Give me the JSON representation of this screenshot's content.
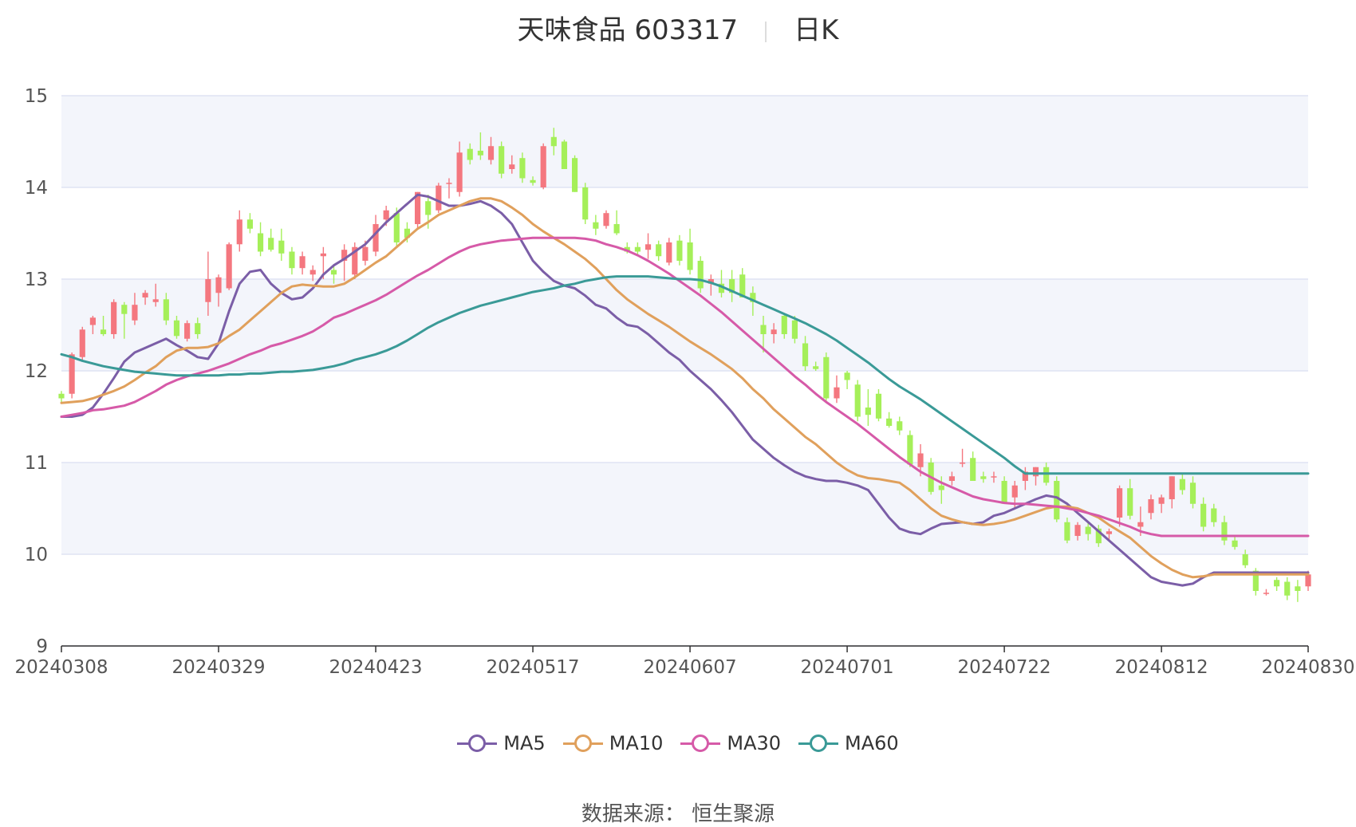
{
  "header": {
    "name": "天味食品 603317",
    "period": "日K"
  },
  "footer": {
    "source": "数据来源： 恒生聚源"
  },
  "colors": {
    "up": "#f4777f",
    "down": "#a5ef59",
    "grid": "#dfe3f3",
    "band": "#f3f5fb",
    "axis": "#333333"
  },
  "chart_data": {
    "type": "candlestick",
    "ylim": [
      9,
      15
    ],
    "yticks": [
      9,
      10,
      11,
      12,
      13,
      14,
      15
    ],
    "xticks": [
      "20240308",
      "20240329",
      "20240423",
      "20240517",
      "20240607",
      "20240701",
      "20240722",
      "20240812",
      "20240830"
    ],
    "xtick_index": [
      0,
      15,
      30,
      45,
      60,
      75,
      90,
      105,
      119
    ],
    "candles_ohlc": [
      [
        11.75,
        11.78,
        11.65,
        11.7
      ],
      [
        11.75,
        12.2,
        11.7,
        12.18
      ],
      [
        12.15,
        12.48,
        12.1,
        12.45
      ],
      [
        12.5,
        12.6,
        12.4,
        12.58
      ],
      [
        12.45,
        12.6,
        12.38,
        12.4
      ],
      [
        12.4,
        12.78,
        12.35,
        12.75
      ],
      [
        12.72,
        12.75,
        12.35,
        12.62
      ],
      [
        12.55,
        12.85,
        12.5,
        12.72
      ],
      [
        12.8,
        12.88,
        12.72,
        12.85
      ],
      [
        12.75,
        12.95,
        12.7,
        12.78
      ],
      [
        12.78,
        12.85,
        12.5,
        12.55
      ],
      [
        12.55,
        12.6,
        12.35,
        12.38
      ],
      [
        12.35,
        12.55,
        12.32,
        12.52
      ],
      [
        12.52,
        12.58,
        12.35,
        12.4
      ],
      [
        12.75,
        13.3,
        12.6,
        13.0
      ],
      [
        12.85,
        13.05,
        12.7,
        13.02
      ],
      [
        12.9,
        13.4,
        12.88,
        13.38
      ],
      [
        13.38,
        13.75,
        13.3,
        13.65
      ],
      [
        13.65,
        13.72,
        13.5,
        13.55
      ],
      [
        13.5,
        13.62,
        13.25,
        13.3
      ],
      [
        13.45,
        13.55,
        13.3,
        13.32
      ],
      [
        13.42,
        13.55,
        13.2,
        13.28
      ],
      [
        13.3,
        13.35,
        13.05,
        13.12
      ],
      [
        13.12,
        13.3,
        13.05,
        13.25
      ],
      [
        13.05,
        13.15,
        12.98,
        13.1
      ],
      [
        13.25,
        13.35,
        13.0,
        13.28
      ],
      [
        13.1,
        13.15,
        12.95,
        13.05
      ],
      [
        13.2,
        13.38,
        12.98,
        13.32
      ],
      [
        13.05,
        13.4,
        13.0,
        13.35
      ],
      [
        13.2,
        13.42,
        13.15,
        13.35
      ],
      [
        13.3,
        13.7,
        13.25,
        13.6
      ],
      [
        13.65,
        13.8,
        13.58,
        13.75
      ],
      [
        13.72,
        13.78,
        13.35,
        13.4
      ],
      [
        13.55,
        13.62,
        13.4,
        13.45
      ],
      [
        13.6,
        13.95,
        13.55,
        13.95
      ],
      [
        13.85,
        13.92,
        13.55,
        13.7
      ],
      [
        13.75,
        14.05,
        13.72,
        14.02
      ],
      [
        14.05,
        14.1,
        13.88,
        14.05
      ],
      [
        13.95,
        14.5,
        13.9,
        14.38
      ],
      [
        14.42,
        14.48,
        14.25,
        14.3
      ],
      [
        14.4,
        14.6,
        14.3,
        14.35
      ],
      [
        14.3,
        14.55,
        14.25,
        14.45
      ],
      [
        14.45,
        14.5,
        14.1,
        14.15
      ],
      [
        14.2,
        14.35,
        14.15,
        14.25
      ],
      [
        14.32,
        14.38,
        14.05,
        14.1
      ],
      [
        14.08,
        14.12,
        14.02,
        14.05
      ],
      [
        14.0,
        14.48,
        13.98,
        14.45
      ],
      [
        14.55,
        14.65,
        14.35,
        14.45
      ],
      [
        14.5,
        14.52,
        14.2,
        14.2
      ],
      [
        14.32,
        14.35,
        13.95,
        13.95
      ],
      [
        14.0,
        14.05,
        13.6,
        13.65
      ],
      [
        13.62,
        13.7,
        13.48,
        13.55
      ],
      [
        13.58,
        13.75,
        13.55,
        13.72
      ],
      [
        13.6,
        13.75,
        13.48,
        13.5
      ],
      [
        13.35,
        13.4,
        13.28,
        13.3
      ],
      [
        13.35,
        13.4,
        13.25,
        13.3
      ],
      [
        13.32,
        13.5,
        13.22,
        13.38
      ],
      [
        13.38,
        13.42,
        13.2,
        13.25
      ],
      [
        13.18,
        13.45,
        13.15,
        13.4
      ],
      [
        13.42,
        13.48,
        13.15,
        13.2
      ],
      [
        13.4,
        13.55,
        13.05,
        13.1
      ],
      [
        13.2,
        13.25,
        12.85,
        12.9
      ],
      [
        12.95,
        13.05,
        12.82,
        13.0
      ],
      [
        12.95,
        13.1,
        12.8,
        12.85
      ],
      [
        13.0,
        13.1,
        12.75,
        12.85
      ],
      [
        13.05,
        13.12,
        12.8,
        12.8
      ],
      [
        12.85,
        12.92,
        12.6,
        12.75
      ],
      [
        12.5,
        12.6,
        12.2,
        12.4
      ],
      [
        12.4,
        12.52,
        12.3,
        12.45
      ],
      [
        12.6,
        12.62,
        12.35,
        12.4
      ],
      [
        12.55,
        12.6,
        12.3,
        12.35
      ],
      [
        12.3,
        12.38,
        12.0,
        12.05
      ],
      [
        12.05,
        12.1,
        12.0,
        12.02
      ],
      [
        12.15,
        12.2,
        11.65,
        11.7
      ],
      [
        11.7,
        11.95,
        11.65,
        11.82
      ],
      [
        11.98,
        12.0,
        11.8,
        11.9
      ],
      [
        11.85,
        11.9,
        11.45,
        11.5
      ],
      [
        11.6,
        11.8,
        11.4,
        11.52
      ],
      [
        11.75,
        11.8,
        11.45,
        11.48
      ],
      [
        11.48,
        11.55,
        11.38,
        11.4
      ],
      [
        11.45,
        11.5,
        11.3,
        11.35
      ],
      [
        11.3,
        11.35,
        10.95,
        10.98
      ],
      [
        10.95,
        11.2,
        10.85,
        11.1
      ],
      [
        11.0,
        11.05,
        10.65,
        10.68
      ],
      [
        10.75,
        10.85,
        10.55,
        10.7
      ],
      [
        10.8,
        10.9,
        10.75,
        10.85
      ],
      [
        11.0,
        11.15,
        10.95,
        11.0
      ],
      [
        11.05,
        11.12,
        10.8,
        10.8
      ],
      [
        10.85,
        10.9,
        10.78,
        10.82
      ],
      [
        10.85,
        10.9,
        10.78,
        10.85
      ],
      [
        10.8,
        10.85,
        10.55,
        10.55
      ],
      [
        10.62,
        10.8,
        10.5,
        10.75
      ],
      [
        10.8,
        10.95,
        10.7,
        10.9
      ],
      [
        10.85,
        10.95,
        10.75,
        10.95
      ],
      [
        10.95,
        11.0,
        10.75,
        10.78
      ],
      [
        10.8,
        10.85,
        10.35,
        10.38
      ],
      [
        10.35,
        10.4,
        10.12,
        10.15
      ],
      [
        10.2,
        10.35,
        10.15,
        10.32
      ],
      [
        10.3,
        10.35,
        10.15,
        10.22
      ],
      [
        10.28,
        10.32,
        10.08,
        10.12
      ],
      [
        10.22,
        10.28,
        10.15,
        10.25
      ],
      [
        10.4,
        10.75,
        10.3,
        10.72
      ],
      [
        10.72,
        10.82,
        10.38,
        10.42
      ],
      [
        10.3,
        10.52,
        10.2,
        10.35
      ],
      [
        10.45,
        10.65,
        10.38,
        10.6
      ],
      [
        10.55,
        10.65,
        10.45,
        10.62
      ],
      [
        10.6,
        10.85,
        10.5,
        10.85
      ],
      [
        10.82,
        10.88,
        10.65,
        10.7
      ],
      [
        10.78,
        10.85,
        10.5,
        10.55
      ],
      [
        10.55,
        10.62,
        10.25,
        10.3
      ],
      [
        10.5,
        10.55,
        10.3,
        10.35
      ],
      [
        10.35,
        10.42,
        10.1,
        10.15
      ],
      [
        10.15,
        10.2,
        10.05,
        10.08
      ],
      [
        10.0,
        10.05,
        9.85,
        9.88
      ],
      [
        9.82,
        9.85,
        9.55,
        9.6
      ],
      [
        9.58,
        9.62,
        9.55,
        9.58
      ],
      [
        9.72,
        9.75,
        9.6,
        9.65
      ],
      [
        9.7,
        9.75,
        9.5,
        9.55
      ],
      [
        9.65,
        9.72,
        9.48,
        9.6
      ],
      [
        9.65,
        9.82,
        9.6,
        9.78
      ]
    ],
    "series": [
      {
        "name": "MA5",
        "color": "#7b5ea7",
        "values": [
          11.5,
          11.5,
          11.52,
          11.6,
          11.75,
          11.92,
          12.1,
          12.2,
          12.25,
          12.3,
          12.35,
          12.28,
          12.22,
          12.15,
          12.13,
          12.3,
          12.65,
          12.95,
          13.08,
          13.1,
          12.95,
          12.85,
          12.78,
          12.8,
          12.9,
          13.05,
          13.15,
          13.22,
          13.3,
          13.38,
          13.5,
          13.62,
          13.72,
          13.82,
          13.92,
          13.9,
          13.85,
          13.8,
          13.8,
          13.82,
          13.85,
          13.8,
          13.72,
          13.6,
          13.4,
          13.2,
          13.08,
          12.98,
          12.93,
          12.9,
          12.82,
          12.72,
          12.68,
          12.58,
          12.5,
          12.48,
          12.4,
          12.3,
          12.2,
          12.12,
          12.0,
          11.9,
          11.8,
          11.68,
          11.55,
          11.4,
          11.25,
          11.15,
          11.05,
          10.97,
          10.9,
          10.85,
          10.82,
          10.8,
          10.8,
          10.78,
          10.75,
          10.7,
          10.55,
          10.4,
          10.28,
          10.24,
          10.22,
          10.28,
          10.33,
          10.34,
          10.35,
          10.33,
          10.35,
          10.42,
          10.45,
          10.5,
          10.55,
          10.6,
          10.64,
          10.62,
          10.55,
          10.45,
          10.35,
          10.25,
          10.15,
          10.05,
          9.95,
          9.85,
          9.75,
          9.7,
          9.68,
          9.66,
          9.68,
          9.75,
          9.8,
          9.8,
          9.8,
          9.8,
          9.8,
          9.8,
          9.8,
          9.8,
          9.8,
          9.8
        ]
      },
      {
        "name": "MA10",
        "color": "#e0a05c",
        "values": [
          11.65,
          11.66,
          11.67,
          11.7,
          11.74,
          11.78,
          11.83,
          11.9,
          11.98,
          12.05,
          12.15,
          12.22,
          12.25,
          12.25,
          12.26,
          12.3,
          12.38,
          12.45,
          12.55,
          12.65,
          12.75,
          12.85,
          12.92,
          12.94,
          12.93,
          12.92,
          12.92,
          12.95,
          13.02,
          13.1,
          13.18,
          13.25,
          13.35,
          13.45,
          13.55,
          13.62,
          13.7,
          13.75,
          13.8,
          13.85,
          13.88,
          13.88,
          13.85,
          13.78,
          13.7,
          13.6,
          13.52,
          13.45,
          13.38,
          13.3,
          13.22,
          13.12,
          13.0,
          12.88,
          12.78,
          12.7,
          12.62,
          12.55,
          12.48,
          12.4,
          12.32,
          12.25,
          12.18,
          12.1,
          12.02,
          11.92,
          11.8,
          11.7,
          11.58,
          11.48,
          11.38,
          11.28,
          11.2,
          11.1,
          11.0,
          10.92,
          10.86,
          10.83,
          10.82,
          10.8,
          10.78,
          10.7,
          10.6,
          10.5,
          10.42,
          10.38,
          10.35,
          10.33,
          10.32,
          10.33,
          10.35,
          10.38,
          10.42,
          10.46,
          10.5,
          10.52,
          10.52,
          10.5,
          10.45,
          10.4,
          10.32,
          10.25,
          10.18,
          10.08,
          9.98,
          9.9,
          9.83,
          9.78,
          9.75,
          9.76,
          9.78,
          9.78,
          9.78,
          9.78,
          9.78,
          9.78,
          9.78,
          9.78,
          9.78,
          9.78
        ]
      },
      {
        "name": "MA30",
        "color": "#d65aa8",
        "values": [
          11.5,
          11.52,
          11.54,
          11.57,
          11.58,
          11.6,
          11.62,
          11.66,
          11.72,
          11.78,
          11.85,
          11.9,
          11.94,
          11.97,
          12.0,
          12.04,
          12.08,
          12.13,
          12.18,
          12.22,
          12.27,
          12.3,
          12.34,
          12.38,
          12.43,
          12.5,
          12.58,
          12.62,
          12.67,
          12.72,
          12.77,
          12.83,
          12.9,
          12.97,
          13.04,
          13.1,
          13.17,
          13.24,
          13.3,
          13.35,
          13.38,
          13.4,
          13.42,
          13.43,
          13.44,
          13.45,
          13.45,
          13.45,
          13.45,
          13.45,
          13.44,
          13.42,
          13.38,
          13.35,
          13.31,
          13.26,
          13.2,
          13.13,
          13.06,
          12.98,
          12.9,
          12.82,
          12.73,
          12.64,
          12.54,
          12.44,
          12.34,
          12.24,
          12.14,
          12.04,
          11.94,
          11.85,
          11.75,
          11.66,
          11.58,
          11.5,
          11.42,
          11.33,
          11.24,
          11.15,
          11.06,
          10.98,
          10.9,
          10.84,
          10.78,
          10.73,
          10.68,
          10.63,
          10.6,
          10.58,
          10.56,
          10.55,
          10.55,
          10.54,
          10.53,
          10.52,
          10.5,
          10.48,
          10.45,
          10.42,
          10.38,
          10.34,
          10.3,
          10.25,
          10.22,
          10.2,
          10.2,
          10.2,
          10.2,
          10.2,
          10.2,
          10.2,
          10.2,
          10.2,
          10.2,
          10.2,
          10.2,
          10.2,
          10.2,
          10.2
        ]
      },
      {
        "name": "MA60",
        "color": "#3a9a97",
        "values": [
          12.18,
          12.15,
          12.11,
          12.08,
          12.05,
          12.03,
          12.01,
          11.99,
          11.98,
          11.97,
          11.96,
          11.95,
          11.95,
          11.95,
          11.95,
          11.95,
          11.96,
          11.96,
          11.97,
          11.97,
          11.98,
          11.99,
          11.99,
          12.0,
          12.01,
          12.03,
          12.05,
          12.08,
          12.12,
          12.15,
          12.18,
          12.22,
          12.27,
          12.33,
          12.4,
          12.47,
          12.53,
          12.58,
          12.63,
          12.67,
          12.71,
          12.74,
          12.77,
          12.8,
          12.83,
          12.86,
          12.88,
          12.9,
          12.93,
          12.95,
          12.98,
          13.0,
          13.02,
          13.03,
          13.03,
          13.03,
          13.03,
          13.02,
          13.01,
          13.0,
          13.0,
          12.99,
          12.96,
          12.92,
          12.87,
          12.82,
          12.77,
          12.72,
          12.67,
          12.62,
          12.57,
          12.52,
          12.46,
          12.4,
          12.33,
          12.25,
          12.17,
          12.09,
          12.0,
          11.91,
          11.83,
          11.76,
          11.69,
          11.61,
          11.53,
          11.45,
          11.37,
          11.29,
          11.21,
          11.13,
          11.05,
          10.96,
          10.88,
          10.88,
          10.88,
          10.88,
          10.88,
          10.88,
          10.88,
          10.88,
          10.88,
          10.88,
          10.88,
          10.88,
          10.88,
          10.88,
          10.88,
          10.88,
          10.88,
          10.88,
          10.88,
          10.88,
          10.88,
          10.88,
          10.88,
          10.88,
          10.88,
          10.88,
          10.88,
          10.88
        ]
      }
    ]
  }
}
